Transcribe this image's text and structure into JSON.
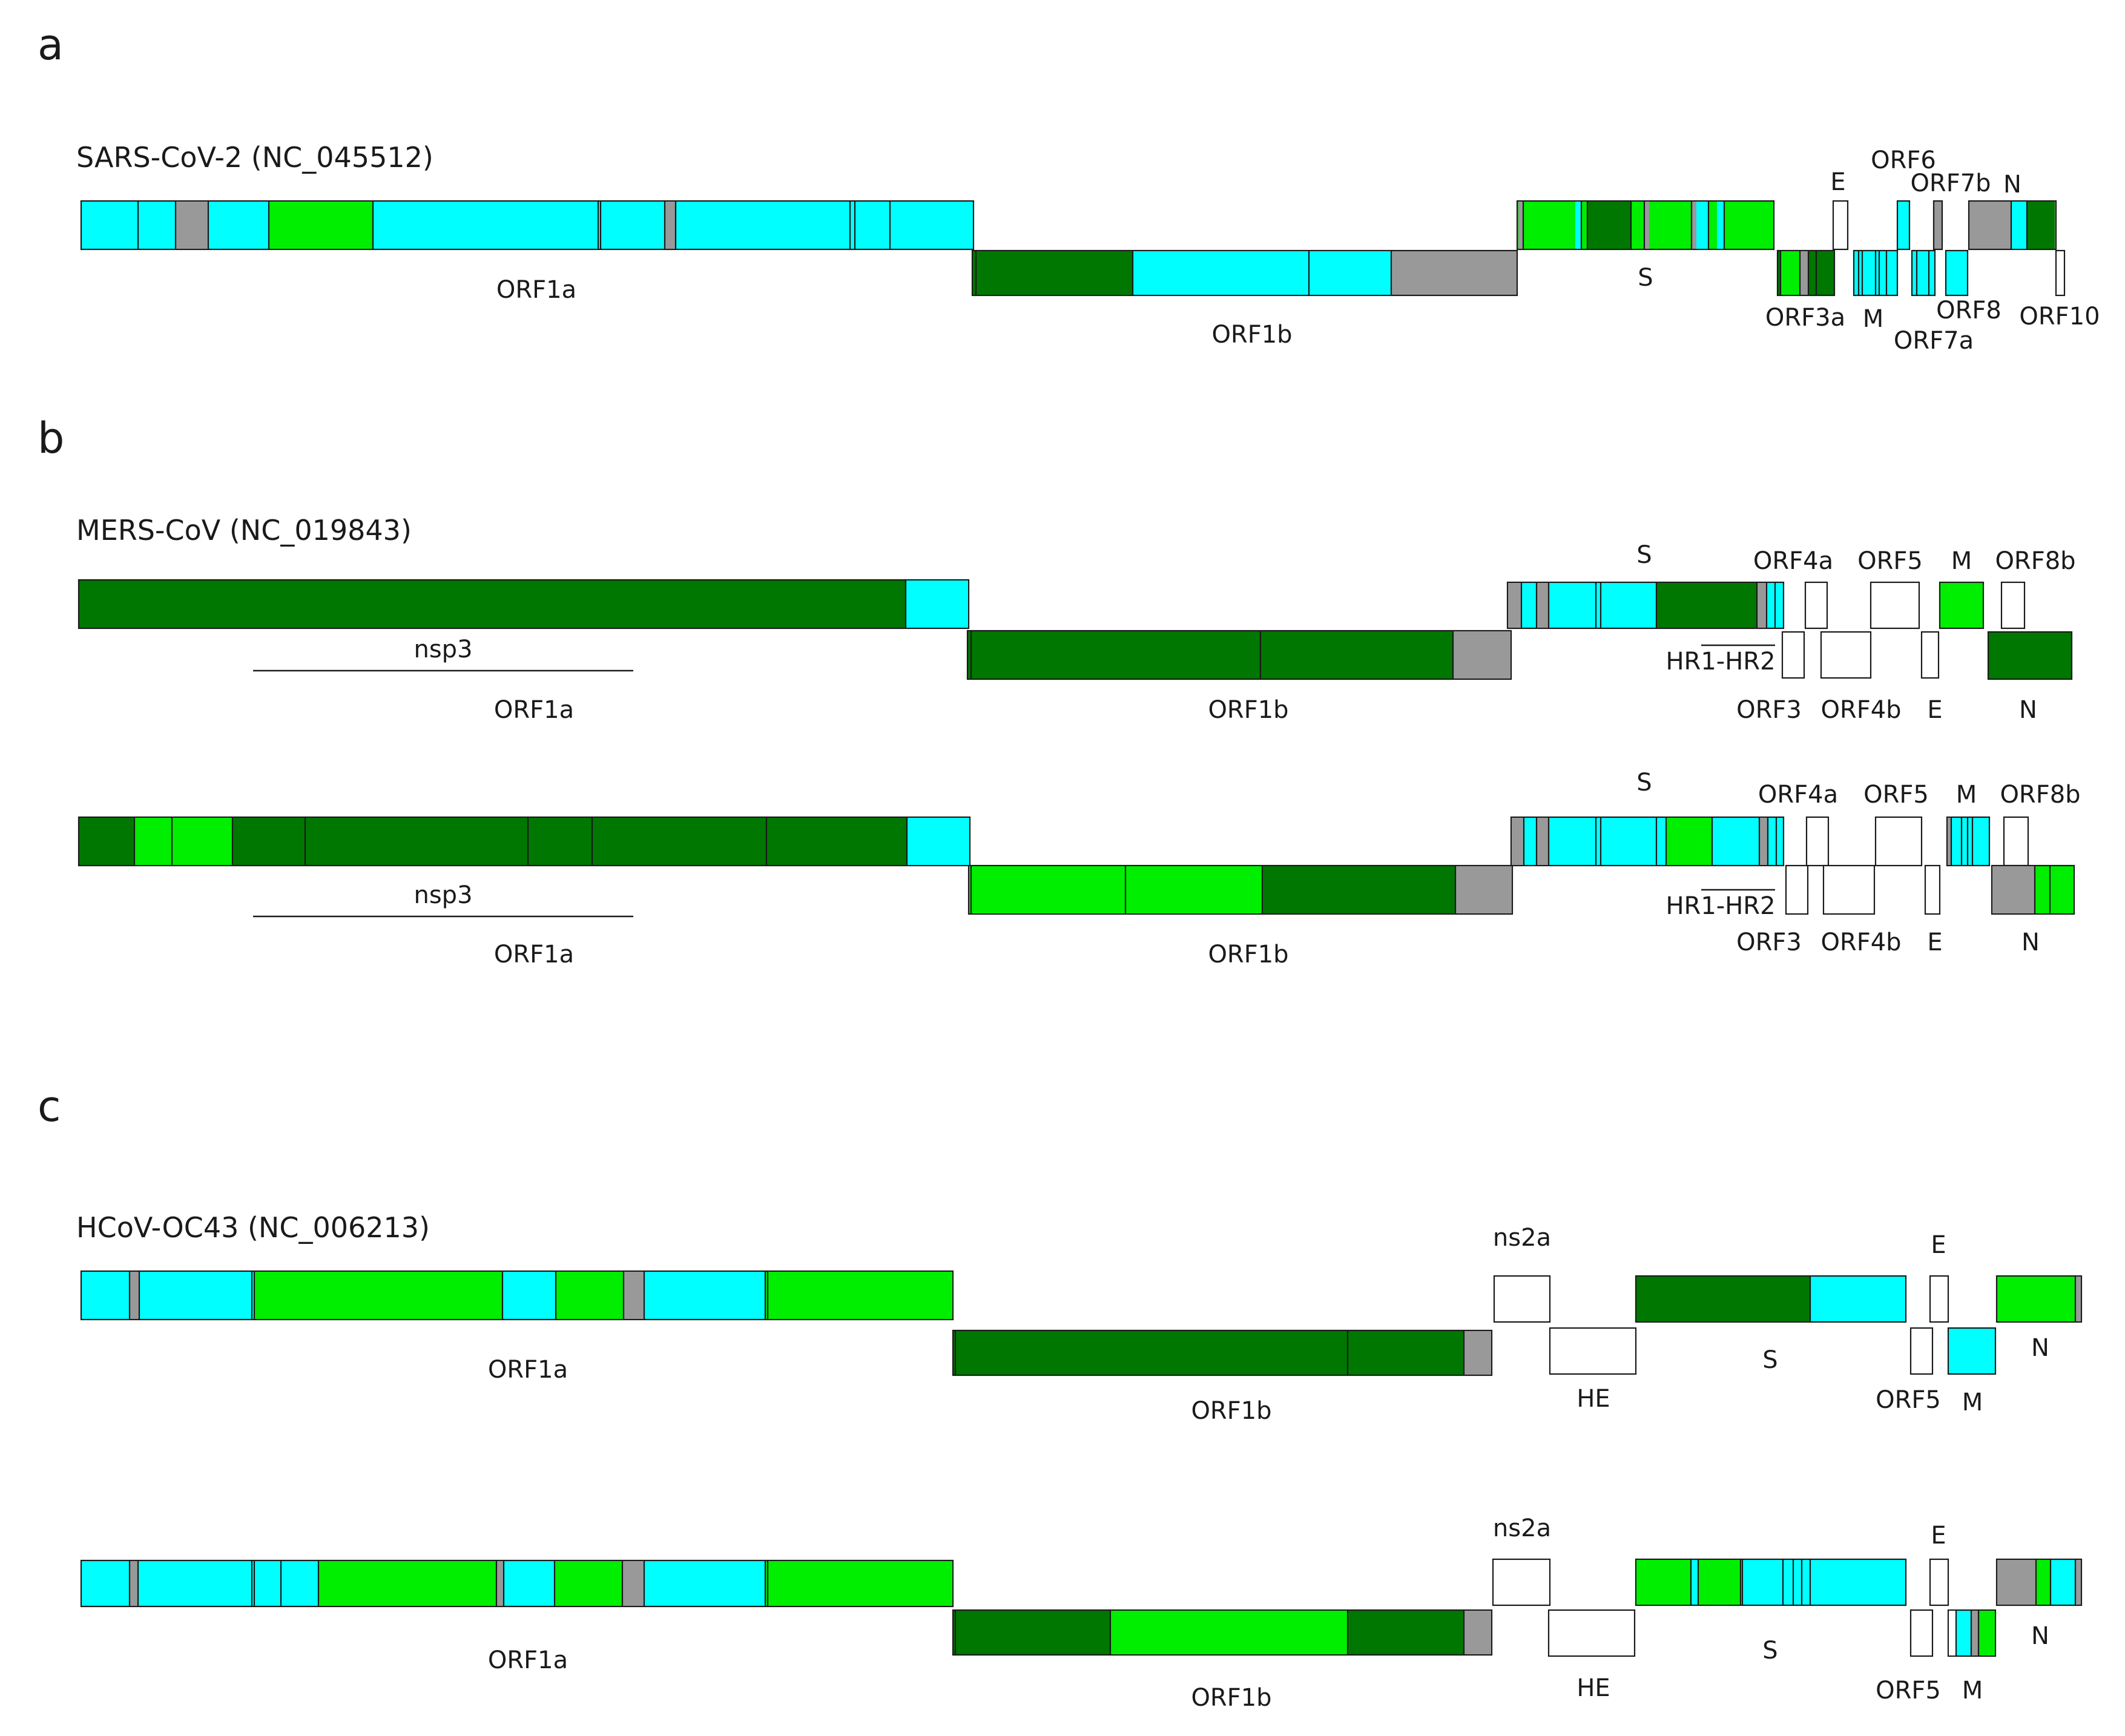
{
  "colors": {
    "cyan": "#00ffff",
    "light_green": "#00ee00",
    "dark_green": "#007700",
    "gray": "#999999",
    "white": "#ffffff",
    "stroke": "#1a1a1a"
  },
  "panels": {
    "a": {
      "letter": "a",
      "genome": "SARS-CoV-2 (NC_045512)",
      "labels": [
        "ORF1a",
        "ORF1b",
        "S",
        "E",
        "ORF6",
        "ORF7b",
        "N",
        "ORF3a",
        "M",
        "ORF8",
        "ORF10",
        "ORF7a"
      ]
    },
    "b": {
      "letter": "b",
      "genome": "MERS-CoV (NC_019843)",
      "labels": [
        "S",
        "ORF4a",
        "ORF5",
        "M",
        "ORF8b",
        "nsp3",
        "HR1-HR2",
        "ORF1a",
        "ORF1b",
        "ORF3",
        "ORF4b",
        "E",
        "N"
      ]
    },
    "c": {
      "letter": "c",
      "genome": "HCoV-OC43 (NC_006213)",
      "labels": [
        "ns2a",
        "E",
        "ORF1a",
        "ORF1b",
        "S",
        "HE",
        "N",
        "ORF5",
        "M"
      ]
    }
  }
}
